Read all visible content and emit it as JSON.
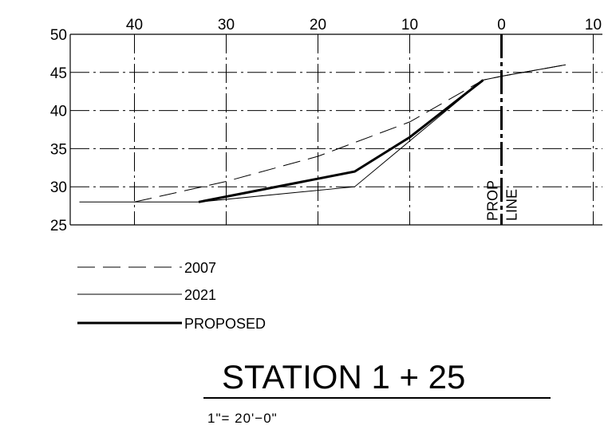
{
  "chart_data": {
    "type": "line",
    "x_axis": {
      "range": [
        47,
        -11
      ],
      "ticks": [
        40,
        30,
        20,
        10,
        0,
        -10
      ],
      "tick_labels": [
        "40",
        "30",
        "20",
        "10",
        "0",
        "10"
      ],
      "position": "top"
    },
    "y_axis": {
      "range": [
        25,
        50
      ],
      "ticks": [
        50,
        45,
        40,
        35,
        30,
        25
      ],
      "tick_labels": [
        "50",
        "45",
        "40",
        "35",
        "30",
        "25"
      ]
    },
    "grid": true,
    "series": [
      {
        "name": "2007",
        "style": "dashed",
        "points": [
          [
            40,
            28
          ],
          [
            30,
            30.7
          ],
          [
            20,
            34
          ],
          [
            10,
            38.5
          ],
          [
            2,
            44
          ],
          [
            0,
            44.5
          ],
          [
            -7,
            46
          ]
        ]
      },
      {
        "name": "2021",
        "style": "thin",
        "points": [
          [
            46,
            28
          ],
          [
            33,
            28
          ],
          [
            16,
            30
          ],
          [
            10,
            36
          ],
          [
            2,
            44
          ],
          [
            0,
            44.5
          ],
          [
            -7,
            46
          ]
        ]
      },
      {
        "name": "PROPOSED",
        "style": "bold",
        "points": [
          [
            33,
            28
          ],
          [
            16,
            32
          ],
          [
            10,
            36.5
          ],
          [
            2,
            44
          ]
        ]
      }
    ],
    "property_line": {
      "x": 0,
      "label_left": "PROP",
      "label_right": "LINE"
    },
    "legend_placement": "bottom-left"
  },
  "title": "STATION 1 + 25",
  "scale": "1\"=  20'−0\""
}
